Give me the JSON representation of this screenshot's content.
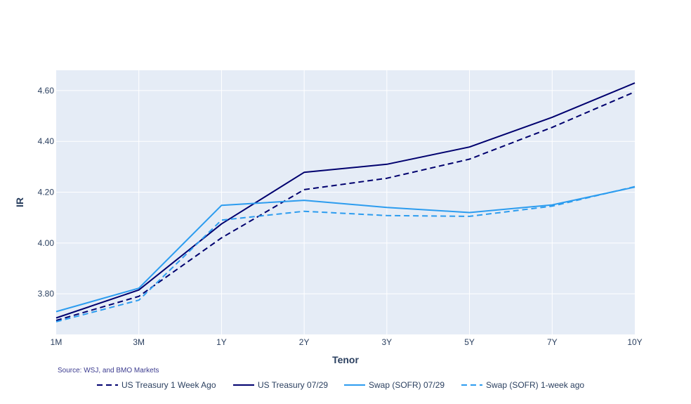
{
  "chart_data": {
    "type": "line",
    "categories": [
      "1M",
      "3M",
      "1Y",
      "2Y",
      "3Y",
      "5Y",
      "7Y",
      "10Y"
    ],
    "xlabel": "Tenor",
    "ylabel": "IR",
    "ylim": [
      3.64,
      4.68
    ],
    "yticks": [
      3.8,
      4.0,
      4.2,
      4.4,
      4.6
    ],
    "ytick_labels": [
      "3.80",
      "4.00",
      "4.20",
      "4.40",
      "4.60"
    ],
    "grid": true,
    "legend_position": "bottom",
    "source_note": "Source: WSJ, and BMO Markets",
    "series": [
      {
        "name": "US Treasury 1 Week Ago",
        "color": "#00006e",
        "dash": "dashed",
        "values": [
          3.695,
          3.79,
          4.02,
          4.21,
          4.255,
          4.33,
          4.455,
          4.595
        ]
      },
      {
        "name": "US Treasury 07/29",
        "color": "#00006e",
        "dash": "solid",
        "values": [
          3.705,
          3.815,
          4.075,
          4.278,
          4.31,
          4.378,
          4.495,
          4.63
        ]
      },
      {
        "name": "Swap (SOFR) 07/29",
        "color": "#2c9cef",
        "dash": "solid",
        "values": [
          3.73,
          3.822,
          4.148,
          4.168,
          4.14,
          4.12,
          4.15,
          4.22
        ]
      },
      {
        "name": "Swap (SOFR) 1-week ago",
        "color": "#2c9cef",
        "dash": "dashed",
        "values": [
          3.69,
          3.775,
          4.09,
          4.125,
          4.108,
          4.105,
          4.145,
          4.222
        ]
      }
    ]
  }
}
